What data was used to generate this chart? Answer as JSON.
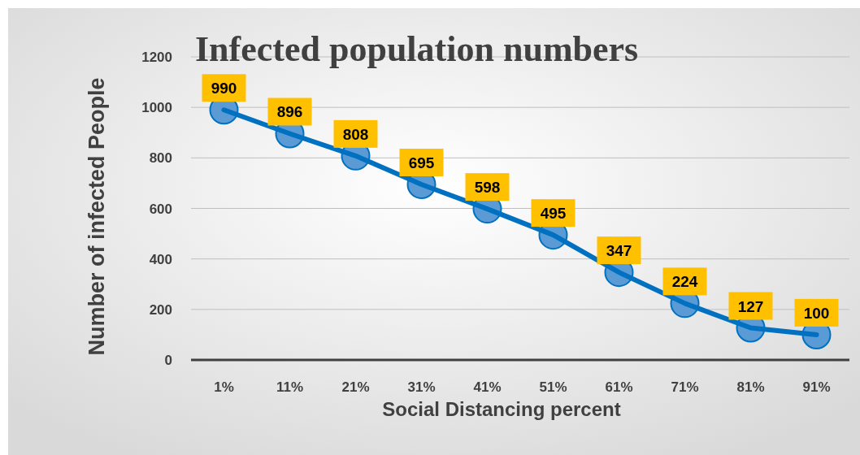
{
  "chart_data": {
    "type": "line",
    "title": "Infected population numbers",
    "xlabel": "Social Distancing percent",
    "ylabel": "Number of  infected People",
    "categories": [
      "1%",
      "11%",
      "21%",
      "31%",
      "41%",
      "51%",
      "61%",
      "71%",
      "81%",
      "91%"
    ],
    "series": [
      {
        "color": "#0070c0",
        "values": [
          990,
          896,
          808,
          695,
          598,
          495,
          347,
          224,
          127,
          100
        ]
      }
    ],
    "ylim": [
      0,
      1200
    ],
    "yticks": [
      0,
      200,
      400,
      600,
      800,
      1000,
      1200
    ],
    "grid": "y",
    "marker": "circle",
    "line_style": "solid",
    "data_labels": true
  }
}
